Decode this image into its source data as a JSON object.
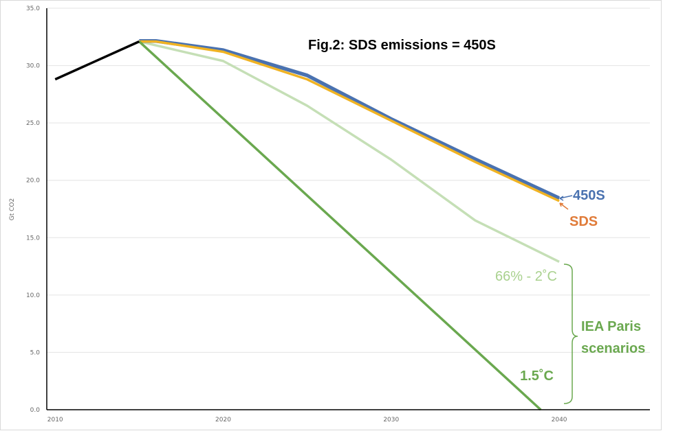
{
  "chart_data": {
    "type": "line",
    "title": "Fig.2: SDS emissions  = 450S",
    "ylabel": "Gt CO2",
    "xlabel": "",
    "ylim": [
      0,
      35
    ],
    "xlim": [
      2009.5,
      2045.4
    ],
    "yticks": [
      "0.0",
      "5.0",
      "10.0",
      "15.0",
      "20.0",
      "25.0",
      "30.0",
      "35.0"
    ],
    "xticks": [
      "2010",
      "2020",
      "2030",
      "2040"
    ],
    "grid": true,
    "series": [
      {
        "key": "hist",
        "color": "#000000",
        "x": [
          2010,
          2015
        ],
        "y": [
          28.8,
          32.1
        ]
      },
      {
        "key": "450s",
        "name": "450S",
        "color": "#4a72b0",
        "x": [
          2015,
          2016,
          2020,
          2025,
          2030,
          2035,
          2040
        ],
        "y": [
          32.1,
          32.1,
          31.3,
          29.1,
          25.3,
          21.8,
          18.4
        ]
      },
      {
        "key": "sds",
        "name": "SDS",
        "color": "#f0b323",
        "x": [
          2015,
          2016,
          2020,
          2025,
          2030,
          2035,
          2040
        ],
        "y": [
          32.1,
          32.1,
          31.2,
          28.8,
          25.2,
          21.6,
          18.2
        ]
      },
      {
        "key": "2c",
        "name": "66% - 2˚C",
        "color": "#c5dfb6",
        "x": [
          2015,
          2020,
          2025,
          2030,
          2035,
          2040
        ],
        "y": [
          32.1,
          30.4,
          26.5,
          21.8,
          16.5,
          12.9
        ]
      },
      {
        "key": "15c",
        "name": "1.5˚C",
        "color": "#6aa84f",
        "x": [
          2015,
          2038.9
        ],
        "y": [
          32.1,
          0
        ]
      }
    ],
    "annotations": {
      "label_450s": "450S",
      "color_450s": "#4a72b0",
      "label_sds": "SDS",
      "color_sds": "#e07b39",
      "label_2c": "66% - 2˚C",
      "color_2c": "#a9d18e",
      "label_15c": "1.5˚C",
      "color_15c": "#6aa84f",
      "bracket_label_line1": "IEA Paris",
      "bracket_label_line2": "scenarios"
    }
  }
}
